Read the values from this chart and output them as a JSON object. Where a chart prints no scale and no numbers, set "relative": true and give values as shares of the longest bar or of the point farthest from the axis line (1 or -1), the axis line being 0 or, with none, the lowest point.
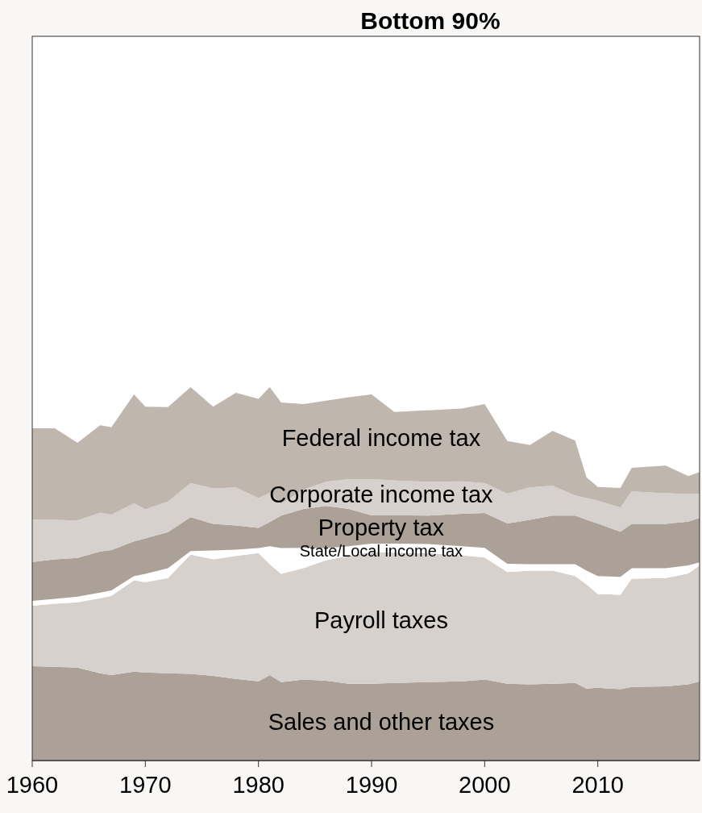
{
  "chart_data": {
    "type": "area",
    "stacked": true,
    "relative": true,
    "title": "Bottom 90%",
    "x": [
      1960,
      1962,
      1964,
      1966,
      1967,
      1969,
      1970,
      1972,
      1974,
      1976,
      1978,
      1980,
      1981,
      1982,
      1984,
      1986,
      1988,
      1990,
      1992,
      1995,
      1998,
      2000,
      2002,
      2004,
      2006,
      2008,
      2009,
      2010,
      2012,
      2013,
      2016,
      2018,
      2019
    ],
    "xlim": [
      1960,
      2019
    ],
    "xticks": [
      1960,
      1970,
      1980,
      1990,
      2000,
      2010
    ],
    "series": [
      {
        "name": "Sales and other taxes",
        "color": "#aba196",
        "values": [
          0.253,
          0.251,
          0.249,
          0.234,
          0.229,
          0.238,
          0.236,
          0.234,
          0.232,
          0.227,
          0.219,
          0.212,
          0.229,
          0.21,
          0.217,
          0.214,
          0.206,
          0.206,
          0.208,
          0.21,
          0.212,
          0.217,
          0.206,
          0.204,
          0.206,
          0.208,
          0.193,
          0.195,
          0.191,
          0.197,
          0.199,
          0.204,
          0.212
        ]
      },
      {
        "name": "Payroll taxes",
        "color": "#d6d1cc",
        "values": [
          0.162,
          0.169,
          0.175,
          0.201,
          0.212,
          0.245,
          0.242,
          0.255,
          0.32,
          0.312,
          0.329,
          0.344,
          0.297,
          0.29,
          0.299,
          0.323,
          0.342,
          0.353,
          0.349,
          0.346,
          0.338,
          0.327,
          0.299,
          0.305,
          0.303,
          0.286,
          0.279,
          0.251,
          0.253,
          0.29,
          0.29,
          0.297,
          0.31
        ]
      },
      {
        "name": "State/Local income tax",
        "color": "#ffffff",
        "values": [
          0.013,
          0.013,
          0.015,
          0.015,
          0.015,
          0.011,
          0.022,
          0.026,
          0.009,
          0.024,
          0.017,
          0.013,
          0.048,
          0.069,
          0.054,
          0.032,
          0.026,
          0.022,
          0.024,
          0.024,
          0.024,
          0.026,
          0.022,
          0.017,
          0.017,
          0.032,
          0.037,
          0.048,
          0.048,
          0.028,
          0.026,
          0.022,
          0.009
        ]
      },
      {
        "name": "Property tax",
        "color": "#aba196",
        "values": [
          0.104,
          0.106,
          0.104,
          0.11,
          0.108,
          0.093,
          0.095,
          0.097,
          0.091,
          0.071,
          0.065,
          0.054,
          0.065,
          0.087,
          0.104,
          0.113,
          0.1,
          0.076,
          0.076,
          0.076,
          0.087,
          0.093,
          0.108,
          0.119,
          0.13,
          0.13,
          0.136,
          0.141,
          0.121,
          0.119,
          0.119,
          0.117,
          0.119
        ]
      },
      {
        "name": "Corporate income tax",
        "color": "#d6d1cc",
        "values": [
          0.113,
          0.106,
          0.1,
          0.104,
          0.095,
          0.102,
          0.078,
          0.082,
          0.091,
          0.095,
          0.102,
          0.08,
          0.078,
          0.032,
          0.052,
          0.065,
          0.08,
          0.097,
          0.093,
          0.091,
          0.087,
          0.08,
          0.08,
          0.087,
          0.08,
          0.054,
          0.058,
          0.061,
          0.065,
          0.087,
          0.082,
          0.074,
          0.065
        ]
      },
      {
        "name": "Federal income tax",
        "color": "#bfb6ad",
        "values": [
          0.245,
          0.245,
          0.208,
          0.234,
          0.234,
          0.292,
          0.275,
          0.253,
          0.257,
          0.219,
          0.253,
          0.266,
          0.283,
          0.271,
          0.229,
          0.217,
          0.219,
          0.227,
          0.184,
          0.191,
          0.195,
          0.212,
          0.141,
          0.113,
          0.147,
          0.147,
          0.056,
          0.037,
          0.052,
          0.063,
          0.074,
          0.048,
          0.058
        ]
      }
    ]
  }
}
